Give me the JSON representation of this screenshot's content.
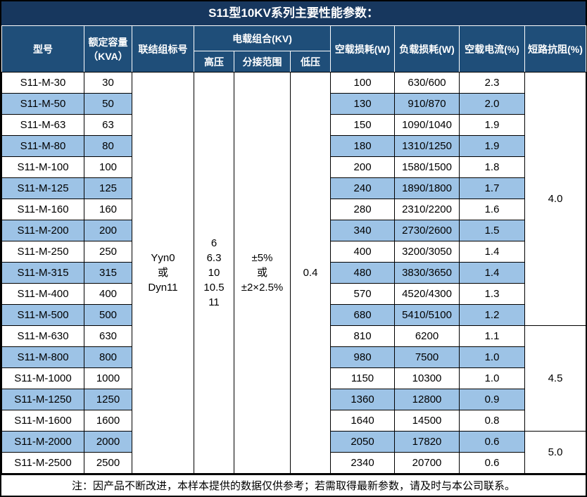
{
  "title": "S11型10KV系列主要性能参数：",
  "colors": {
    "title_bg": "#17375E",
    "header_bg": "#1F4E79",
    "stripe": "#9DC3E6",
    "border": "#000000"
  },
  "header": {
    "model": "型号",
    "capacity_line1": "额定容量",
    "capacity_line2": "（KVA）",
    "connection": "联结组标号",
    "voltage_group": "电载组合(KV)",
    "hv": "高压",
    "tap_range": "分接范围",
    "lv": "低压",
    "no_load_loss": "空载损耗(W)",
    "load_loss": "负载损耗(W)",
    "no_load_current": "空载电流(%)",
    "impedance": "短路抗阻(%)"
  },
  "merged": {
    "connection_lines": [
      "Yyn0",
      "或",
      "Dyn11"
    ],
    "hv_lines": [
      "6",
      "6.3",
      "10",
      "10.5",
      "11"
    ],
    "tap_lines": [
      "±5%",
      "或",
      "±2×2.5%"
    ],
    "lv_lines": [
      "0.4"
    ]
  },
  "impedance_groups": [
    {
      "value": "4.0",
      "rows": 12
    },
    {
      "value": "4.5",
      "rows": 5
    },
    {
      "value": "5.0",
      "rows": 2
    }
  ],
  "rows": [
    {
      "model": "S11-M-30",
      "capacity": "30",
      "no_load_loss": "100",
      "load_loss": "630/600",
      "no_load_current": "2.3"
    },
    {
      "model": "S11-M-50",
      "capacity": "50",
      "no_load_loss": "130",
      "load_loss": "910/870",
      "no_load_current": "2.0"
    },
    {
      "model": "S11-M-63",
      "capacity": "63",
      "no_load_loss": "150",
      "load_loss": "1090/1040",
      "no_load_current": "1.9"
    },
    {
      "model": "S11-M-80",
      "capacity": "80",
      "no_load_loss": "180",
      "load_loss": "1310/1250",
      "no_load_current": "1.9"
    },
    {
      "model": "S11-M-100",
      "capacity": "100",
      "no_load_loss": "200",
      "load_loss": "1580/1500",
      "no_load_current": "1.8"
    },
    {
      "model": "S11-M-125",
      "capacity": "125",
      "no_load_loss": "240",
      "load_loss": "1890/1800",
      "no_load_current": "1.7"
    },
    {
      "model": "S11-M-160",
      "capacity": "160",
      "no_load_loss": "280",
      "load_loss": "2310/2200",
      "no_load_current": "1.6"
    },
    {
      "model": "S11-M-200",
      "capacity": "200",
      "no_load_loss": "340",
      "load_loss": "2730/2600",
      "no_load_current": "1.5"
    },
    {
      "model": "S11-M-250",
      "capacity": "250",
      "no_load_loss": "400",
      "load_loss": "3200/3050",
      "no_load_current": "1.4"
    },
    {
      "model": "S11-M-315",
      "capacity": "315",
      "no_load_loss": "480",
      "load_loss": "3830/3650",
      "no_load_current": "1.4"
    },
    {
      "model": "S11-M-400",
      "capacity": "400",
      "no_load_loss": "570",
      "load_loss": "4520/4300",
      "no_load_current": "1.3"
    },
    {
      "model": "S11-M-500",
      "capacity": "500",
      "no_load_loss": "680",
      "load_loss": "5410/5100",
      "no_load_current": "1.2"
    },
    {
      "model": "S11-M-630",
      "capacity": "630",
      "no_load_loss": "810",
      "load_loss": "6200",
      "no_load_current": "1.1"
    },
    {
      "model": "S11-M-800",
      "capacity": "800",
      "no_load_loss": "980",
      "load_loss": "7500",
      "no_load_current": "1.0"
    },
    {
      "model": "S11-M-1000",
      "capacity": "1000",
      "no_load_loss": "1150",
      "load_loss": "10300",
      "no_load_current": "1.0"
    },
    {
      "model": "S11-M-1250",
      "capacity": "1250",
      "no_load_loss": "1360",
      "load_loss": "12800",
      "no_load_current": "0.9"
    },
    {
      "model": "S11-M-1600",
      "capacity": "1600",
      "no_load_loss": "1640",
      "load_loss": "14500",
      "no_load_current": "0.8"
    },
    {
      "model": "S11-M-2000",
      "capacity": "2000",
      "no_load_loss": "2050",
      "load_loss": "17820",
      "no_load_current": "0.6"
    },
    {
      "model": "S11-M-2500",
      "capacity": "2500",
      "no_load_loss": "2340",
      "load_loss": "20700",
      "no_load_current": "0.6"
    }
  ],
  "note": "注：因产品不断改进，本样本提供的数据仅供参考；若需取得最新参数，请及时与本公司联系。"
}
